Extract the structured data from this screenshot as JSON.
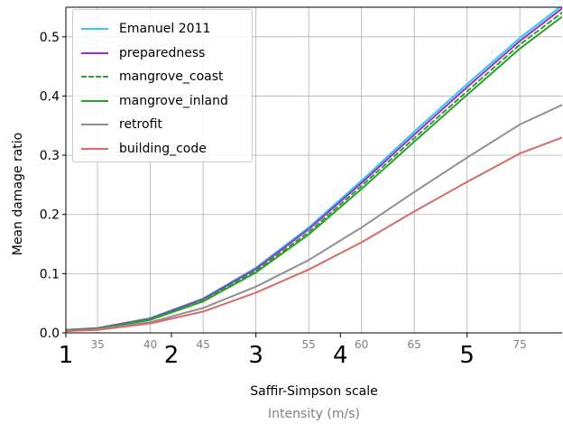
{
  "chart_data": {
    "type": "line",
    "xlabel": "Saffir-Simpson scale",
    "xlabel_secondary": "Intensity (m/s)",
    "ylabel": "Mean damage ratio",
    "xlim": [
      32,
      79
    ],
    "ylim": [
      0,
      0.55
    ],
    "x_ticks": [
      35,
      40,
      45,
      50,
      55,
      60,
      65,
      70,
      75
    ],
    "x_tick_labels": [
      "35",
      "40",
      "45",
      "",
      "55",
      "60",
      "65",
      "",
      "75"
    ],
    "category_ticks": [
      {
        "x": 32,
        "label": "1"
      },
      {
        "x": 42,
        "label": "2"
      },
      {
        "x": 50,
        "label": "3"
      },
      {
        "x": 58,
        "label": "4"
      },
      {
        "x": 70,
        "label": "5"
      }
    ],
    "y_ticks": [
      0.0,
      0.1,
      0.2,
      0.3,
      0.4,
      0.5
    ],
    "y_tick_labels": [
      "0.0",
      "0.1",
      "0.2",
      "0.3",
      "0.4",
      "0.5"
    ],
    "grid": true,
    "legend_position": "top-left",
    "x": [
      32,
      35,
      40,
      45,
      50,
      55,
      60,
      65,
      70,
      75,
      79
    ],
    "series": [
      {
        "name": "Emanuel 2011",
        "color": "#2ec8f0",
        "dash": false,
        "values": [
          0.005,
          0.008,
          0.025,
          0.058,
          0.11,
          0.178,
          0.257,
          0.34,
          0.42,
          0.498,
          0.553
        ]
      },
      {
        "name": "preparedness",
        "color": "#9b2fc9",
        "dash": false,
        "values": [
          0.005,
          0.008,
          0.024,
          0.057,
          0.108,
          0.175,
          0.253,
          0.335,
          0.415,
          0.493,
          0.548
        ]
      },
      {
        "name": "mangrove_coast",
        "color": "#2f9d2f",
        "dash": true,
        "values": [
          0.005,
          0.007,
          0.023,
          0.055,
          0.105,
          0.17,
          0.248,
          0.329,
          0.408,
          0.487,
          0.541
        ]
      },
      {
        "name": "mangrove_inland",
        "color": "#2f9d2f",
        "dash": false,
        "values": [
          0.004,
          0.007,
          0.022,
          0.053,
          0.102,
          0.166,
          0.243,
          0.323,
          0.402,
          0.48,
          0.534
        ]
      },
      {
        "name": "retrofit",
        "color": "#909090",
        "dash": false,
        "values": [
          0.003,
          0.006,
          0.018,
          0.042,
          0.078,
          0.123,
          0.178,
          0.238,
          0.296,
          0.352,
          0.385
        ]
      },
      {
        "name": "building_code",
        "color": "#d96a6a",
        "dash": false,
        "values": [
          0.003,
          0.005,
          0.016,
          0.036,
          0.068,
          0.107,
          0.153,
          0.205,
          0.255,
          0.303,
          0.33
        ]
      }
    ]
  }
}
